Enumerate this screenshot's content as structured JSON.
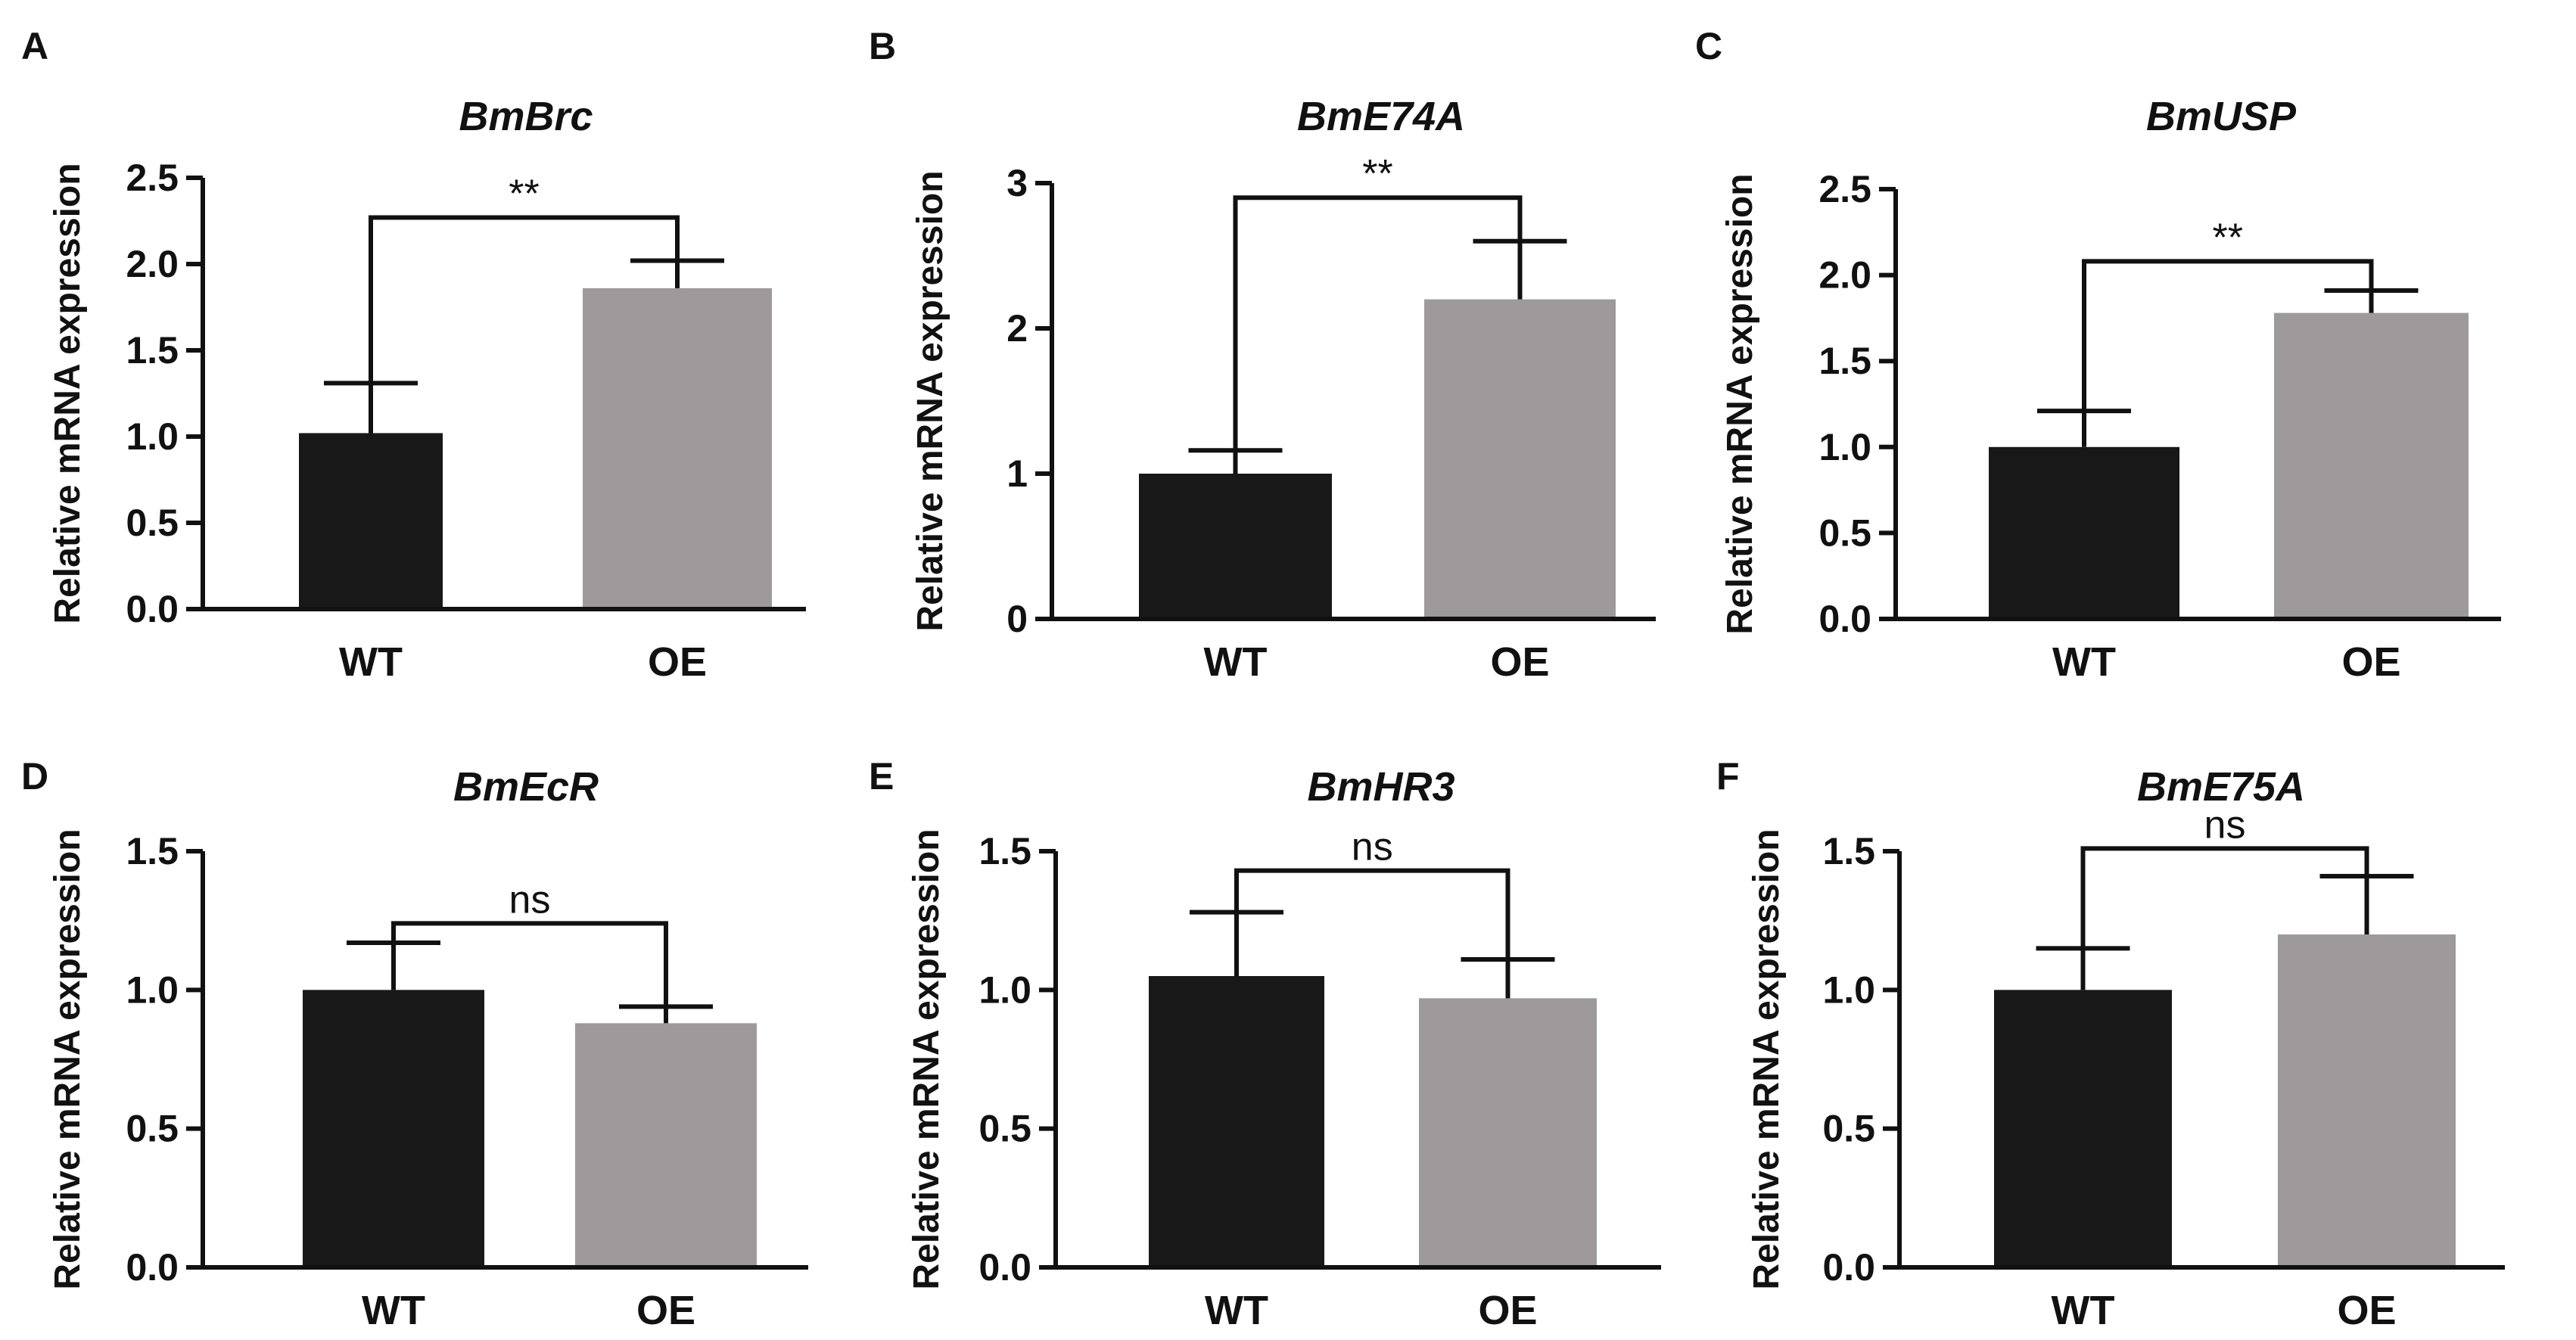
{
  "colors": {
    "WT": "#181818",
    "OE": "#9e9a9b",
    "axis": "#111111"
  },
  "chart_data": [
    {
      "panel": "A",
      "type": "bar",
      "title": "BmBrc",
      "ylabel": "Relative mRNA expression",
      "categories": [
        "WT",
        "OE"
      ],
      "values": [
        1.02,
        1.86
      ],
      "errors": [
        0.29,
        0.16
      ],
      "ylim": [
        0,
        2.5
      ],
      "yticks": [
        "0.0",
        "0.5",
        "1.0",
        "1.5",
        "2.0",
        "2.5"
      ],
      "significance": "**",
      "bracket_y": 2.27
    },
    {
      "panel": "B",
      "type": "bar",
      "title": "BmE74A",
      "ylabel": "Relative mRNA expression",
      "categories": [
        "WT",
        "OE"
      ],
      "values": [
        1.0,
        2.2
      ],
      "errors": [
        0.16,
        0.4
      ],
      "ylim": [
        0,
        3
      ],
      "yticks": [
        "0",
        "1",
        "2",
        "3"
      ],
      "significance": "**",
      "bracket_y": 2.9
    },
    {
      "panel": "C",
      "type": "bar",
      "title": "BmUSP",
      "ylabel": "Relative mRNA expression",
      "categories": [
        "WT",
        "OE"
      ],
      "values": [
        1.0,
        1.78
      ],
      "errors": [
        0.21,
        0.13
      ],
      "ylim": [
        0,
        2.5
      ],
      "yticks": [
        "0.0",
        "0.5",
        "1.0",
        "1.5",
        "2.0",
        "2.5"
      ],
      "significance": "**",
      "bracket_y": 2.08
    },
    {
      "panel": "D",
      "type": "bar",
      "title": "BmEcR",
      "ylabel": "Relative mRNA expression",
      "categories": [
        "WT",
        "OE"
      ],
      "values": [
        1.0,
        0.88
      ],
      "errors": [
        0.17,
        0.06
      ],
      "ylim": [
        0,
        1.5
      ],
      "yticks": [
        "0.0",
        "0.5",
        "1.0",
        "1.5"
      ],
      "significance": "ns",
      "bracket_y": 1.24
    },
    {
      "panel": "E",
      "type": "bar",
      "title": "BmHR3",
      "ylabel": "Relative mRNA expression",
      "categories": [
        "WT",
        "OE"
      ],
      "values": [
        1.05,
        0.97
      ],
      "errors": [
        0.23,
        0.14
      ],
      "ylim": [
        0,
        1.5
      ],
      "yticks": [
        "0.0",
        "0.5",
        "1.0",
        "1.5"
      ],
      "significance": "ns",
      "bracket_y": 1.43
    },
    {
      "panel": "F",
      "type": "bar",
      "title": "BmE75A",
      "ylabel": "Relative mRNA expression",
      "categories": [
        "WT",
        "OE"
      ],
      "values": [
        1.0,
        1.2
      ],
      "errors": [
        0.15,
        0.21
      ],
      "ylim": [
        0,
        1.5
      ],
      "yticks": [
        "0.0",
        "0.5",
        "1.0",
        "1.5"
      ],
      "significance": "ns",
      "bracket_y": 1.51
    }
  ]
}
